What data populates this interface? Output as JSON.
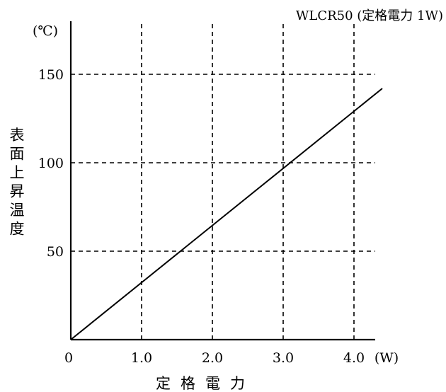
{
  "chart_data": {
    "type": "line",
    "title": "WLCR50 (定格電力 1W)",
    "xlabel": "定格電力",
    "ylabel": "表面上昇温度",
    "x_unit": "(W)",
    "y_unit": "(℃)",
    "x_origin_label": "0",
    "x_ticks": [
      "1.0",
      "2.0",
      "3.0",
      "4.0"
    ],
    "y_ticks": [
      "150",
      "100",
      "50"
    ],
    "xlim": [
      0,
      4.4
    ],
    "ylim": [
      0,
      175
    ],
    "grid": true,
    "grid_style": "dashed",
    "series": [
      {
        "x": [
          0,
          4.4
        ],
        "y": [
          0,
          142
        ]
      }
    ]
  }
}
